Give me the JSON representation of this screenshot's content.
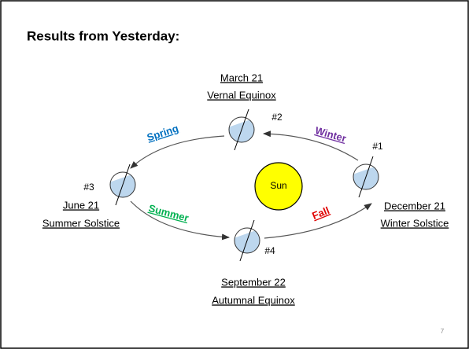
{
  "title": "Results from Yesterday:",
  "sun": {
    "label": "Sun"
  },
  "positions": [
    {
      "number": "#1",
      "date": "December 21",
      "event": "Winter Solstice"
    },
    {
      "number": "#2",
      "date": "March 21",
      "event": "Vernal Equinox"
    },
    {
      "number": "#3",
      "date": "June 21",
      "event": "Summer Solstice"
    },
    {
      "number": "#4",
      "date": "September 22",
      "event": "Autumnal Equinox"
    }
  ],
  "seasons": [
    {
      "label": "Spring",
      "color": "#0070c0"
    },
    {
      "label": "Winter",
      "color": "#7030a0"
    },
    {
      "label": "Summer",
      "color": "#00b050"
    },
    {
      "label": "Fall",
      "color": "#e00000"
    }
  ],
  "page_number": "7"
}
